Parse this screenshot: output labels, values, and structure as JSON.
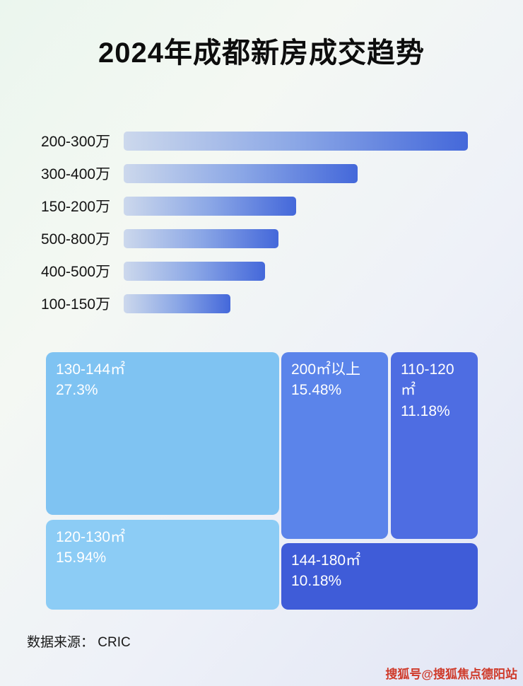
{
  "page": {
    "title": "2024年成都新房成交趋势",
    "footer_source": "数据来源： CRIC",
    "watermark": "搜狐号@搜狐焦点德阳站"
  },
  "colors": {
    "bar_gradient_start": "#ccd8ec",
    "bar_gradient_end": "#4468da",
    "tile_130_144": "#7fc3f2",
    "tile_120_130": "#8cccf5",
    "tile_200_plus": "#5b84ea",
    "tile_110_120": "#4e6de2",
    "tile_144_180": "#3f5cd8",
    "watermark_red": "#cf3a2a"
  },
  "chart_data": [
    {
      "type": "bar",
      "orientation": "horizontal",
      "title": "2024年成都新房成交趋势",
      "categories": [
        "200-300万",
        "300-400万",
        "150-200万",
        "500-800万",
        "400-500万",
        "100-150万"
      ],
      "values_relative_pct_of_max": [
        100,
        68,
        50,
        45,
        41,
        31
      ],
      "value_labels_shown": false,
      "axis_shown": false,
      "grid": false,
      "bars": [
        {
          "label": "200-300万",
          "length_pct": 100
        },
        {
          "label": "300-400万",
          "length_pct": 68
        },
        {
          "label": "150-200万",
          "length_pct": 50
        },
        {
          "label": "500-800万",
          "length_pct": 45
        },
        {
          "label": "400-500万",
          "length_pct": 41
        },
        {
          "label": "100-150万",
          "length_pct": 31
        }
      ]
    },
    {
      "type": "treemap",
      "unit": "share of transactions (%)",
      "tiles": [
        {
          "label": "130-144㎡",
          "share": "27.3%",
          "value": 27.3
        },
        {
          "label": "120-130㎡",
          "share": "15.94%",
          "value": 15.94
        },
        {
          "label": "200㎡以上",
          "share": "15.48%",
          "value": 15.48
        },
        {
          "label": "110-120㎡",
          "share": "11.18%",
          "value": 11.18
        },
        {
          "label": "144-180㎡",
          "share": "10.18%",
          "value": 10.18
        }
      ]
    }
  ]
}
